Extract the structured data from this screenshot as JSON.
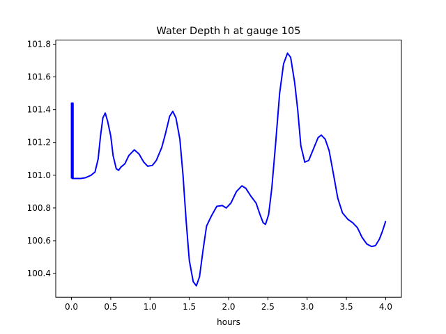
{
  "chart_data": {
    "type": "line",
    "title": "Water Depth h at gauge 105",
    "xlabel": "hours",
    "ylabel": "",
    "xlim": [
      -0.2,
      4.2
    ],
    "ylim": [
      100.255,
      101.825
    ],
    "xticks": [
      0.0,
      0.5,
      1.0,
      1.5,
      2.0,
      2.5,
      3.0,
      3.5,
      4.0
    ],
    "xtick_labels": [
      "0.0",
      "0.5",
      "1.0",
      "1.5",
      "2.0",
      "2.5",
      "3.0",
      "3.5",
      "4.0"
    ],
    "yticks": [
      100.4,
      100.6,
      100.8,
      101.0,
      101.2,
      101.4,
      101.6,
      101.8
    ],
    "ytick_labels": [
      "100.4",
      "100.6",
      "100.8",
      "101.0",
      "101.2",
      "101.4",
      "101.6",
      "101.8"
    ],
    "grid": false,
    "colors": {
      "line": "#0000ff",
      "axes": "#000000",
      "background": "#ffffff"
    },
    "series": [
      {
        "points": [
          [
            0.0,
            100.98
          ],
          [
            0.0,
            101.44
          ],
          [
            0.01,
            101.44
          ],
          [
            0.01,
            100.98
          ],
          [
            0.02,
            101.44
          ],
          [
            0.02,
            100.98
          ],
          [
            0.05,
            100.98
          ],
          [
            0.12,
            100.98
          ],
          [
            0.18,
            100.985
          ],
          [
            0.25,
            101.0
          ],
          [
            0.3,
            101.02
          ],
          [
            0.34,
            101.1
          ],
          [
            0.37,
            101.24
          ],
          [
            0.4,
            101.35
          ],
          [
            0.43,
            101.38
          ],
          [
            0.46,
            101.33
          ],
          [
            0.5,
            101.24
          ],
          [
            0.53,
            101.12
          ],
          [
            0.57,
            101.04
          ],
          [
            0.6,
            101.03
          ],
          [
            0.63,
            101.05
          ],
          [
            0.68,
            101.07
          ],
          [
            0.73,
            101.12
          ],
          [
            0.8,
            101.155
          ],
          [
            0.86,
            101.13
          ],
          [
            0.92,
            101.08
          ],
          [
            0.97,
            101.055
          ],
          [
            1.03,
            101.06
          ],
          [
            1.08,
            101.09
          ],
          [
            1.15,
            101.17
          ],
          [
            1.2,
            101.26
          ],
          [
            1.25,
            101.36
          ],
          [
            1.29,
            101.39
          ],
          [
            1.33,
            101.35
          ],
          [
            1.38,
            101.22
          ],
          [
            1.42,
            101.0
          ],
          [
            1.46,
            100.72
          ],
          [
            1.5,
            100.48
          ],
          [
            1.55,
            100.35
          ],
          [
            1.59,
            100.325
          ],
          [
            1.63,
            100.38
          ],
          [
            1.68,
            100.56
          ],
          [
            1.72,
            100.69
          ],
          [
            1.78,
            100.75
          ],
          [
            1.85,
            100.81
          ],
          [
            1.92,
            100.815
          ],
          [
            1.97,
            100.8
          ],
          [
            2.03,
            100.83
          ],
          [
            2.1,
            100.9
          ],
          [
            2.17,
            100.935
          ],
          [
            2.22,
            100.92
          ],
          [
            2.28,
            100.875
          ],
          [
            2.35,
            100.83
          ],
          [
            2.4,
            100.76
          ],
          [
            2.44,
            100.71
          ],
          [
            2.47,
            100.7
          ],
          [
            2.51,
            100.76
          ],
          [
            2.55,
            100.92
          ],
          [
            2.6,
            101.2
          ],
          [
            2.65,
            101.5
          ],
          [
            2.7,
            101.68
          ],
          [
            2.75,
            101.745
          ],
          [
            2.79,
            101.72
          ],
          [
            2.84,
            101.57
          ],
          [
            2.88,
            101.4
          ],
          [
            2.92,
            101.18
          ],
          [
            2.97,
            101.08
          ],
          [
            3.02,
            101.09
          ],
          [
            3.08,
            101.16
          ],
          [
            3.14,
            101.23
          ],
          [
            3.18,
            101.245
          ],
          [
            3.23,
            101.22
          ],
          [
            3.28,
            101.15
          ],
          [
            3.33,
            101.02
          ],
          [
            3.39,
            100.86
          ],
          [
            3.45,
            100.77
          ],
          [
            3.52,
            100.73
          ],
          [
            3.58,
            100.71
          ],
          [
            3.64,
            100.68
          ],
          [
            3.7,
            100.62
          ],
          [
            3.76,
            100.58
          ],
          [
            3.82,
            100.565
          ],
          [
            3.87,
            100.57
          ],
          [
            3.92,
            100.61
          ],
          [
            3.96,
            100.66
          ],
          [
            4.0,
            100.72
          ]
        ]
      }
    ]
  }
}
